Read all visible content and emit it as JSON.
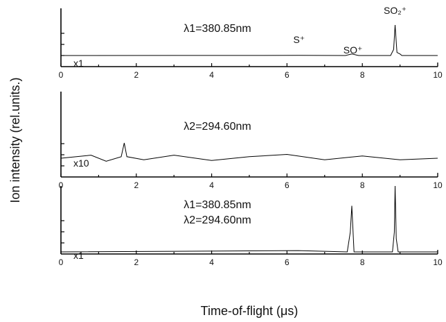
{
  "chart_data": [
    {
      "type": "line",
      "panel": "top",
      "annotation": [
        "λ1=380.85nm"
      ],
      "scale_label": "x1",
      "peak_labels": [
        {
          "label": "S⁺",
          "x": 6.32
        },
        {
          "label": "SO⁺",
          "x": 7.75
        },
        {
          "label": "SO₂⁺",
          "x": 8.87
        }
      ],
      "series": [
        {
          "x": [
            0,
            6.3,
            7.55,
            7.72,
            7.9,
            8.75,
            8.83,
            8.87,
            8.92,
            9.0,
            9.05,
            10
          ],
          "values": [
            0,
            0.005,
            0,
            0.05,
            0,
            0,
            0.2,
            1.0,
            0.1,
            0.05,
            0,
            0
          ]
        }
      ],
      "xlim": [
        0,
        10
      ],
      "xticks": [
        "0",
        "2",
        "4",
        "6",
        "8",
        "10"
      ]
    },
    {
      "type": "line",
      "panel": "middle",
      "annotation": [
        "λ2=294.60nm"
      ],
      "scale_label": "x10",
      "series": [
        {
          "x": [
            0,
            0.8,
            1.2,
            1.6,
            1.68,
            1.75,
            2.2,
            3.0,
            4.0,
            5.0,
            6.0,
            7.0,
            8.0,
            9.0,
            10
          ],
          "values": [
            0,
            0.02,
            -0.02,
            0.01,
            0.1,
            0.01,
            -0.01,
            0.02,
            -0.015,
            0.01,
            0.025,
            -0.01,
            0.015,
            -0.01,
            0.0
          ]
        }
      ],
      "xlim": [
        0,
        10
      ],
      "xticks": [
        "0",
        "2",
        "4",
        "6",
        "8",
        "10"
      ]
    },
    {
      "type": "line",
      "panel": "bottom",
      "annotation": [
        "λ1=380.85nm",
        "λ2=294.60nm"
      ],
      "scale_label": "x1",
      "series": [
        {
          "x": [
            0,
            6.3,
            7.6,
            7.68,
            7.72,
            7.78,
            8.8,
            8.85,
            8.87,
            8.9,
            8.95,
            10
          ],
          "values": [
            0,
            0.02,
            0,
            0.3,
            0.7,
            0,
            0,
            0.3,
            1.0,
            0.2,
            0,
            0
          ]
        }
      ],
      "xlim": [
        0,
        10
      ],
      "xticks": [
        "0",
        "2",
        "4",
        "6",
        "8",
        "10"
      ]
    }
  ],
  "xlabel": "Time-of-flight (μs)",
  "ylabel": "Ion intensity (rel.units.)"
}
